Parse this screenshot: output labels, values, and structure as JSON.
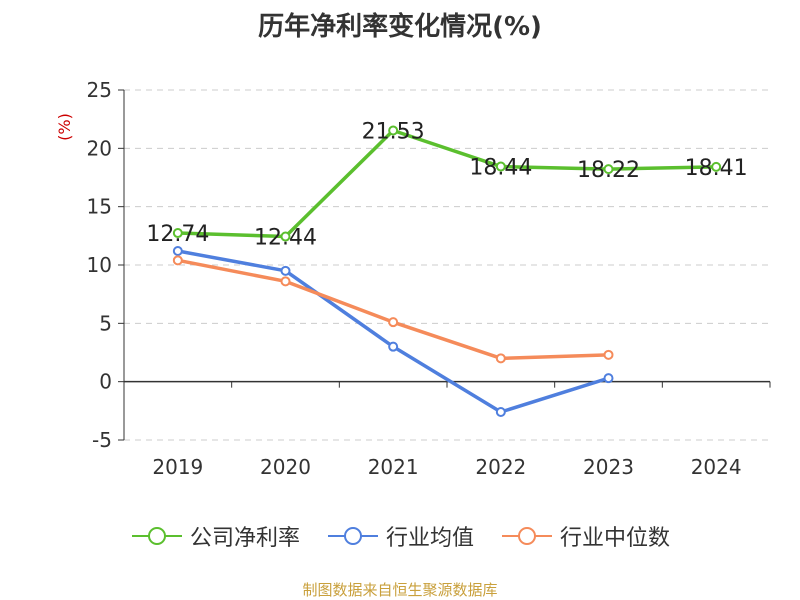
{
  "title": "历年净利率变化情况(%)",
  "source_text": "制图数据来自恒生聚源数据库",
  "colors": {
    "company": "#5bbf2e",
    "industry_avg": "#4f7fde",
    "industry_median": "#f58b5a",
    "grid": "#cccccc",
    "axis": "#333333",
    "unit": "#cc0000",
    "source": "#c9a03c"
  },
  "chart_data": {
    "type": "line",
    "title": "历年净利率变化情况(%)",
    "ylabel": "(%)",
    "xlabel": "",
    "categories": [
      "2019",
      "2020",
      "2021",
      "2022",
      "2023",
      "2024"
    ],
    "ylim": [
      -5,
      25
    ],
    "yticks": [
      -5,
      0,
      5,
      10,
      15,
      20,
      25
    ],
    "grid": true,
    "legend_position": "bottom",
    "series": [
      {
        "name": "公司净利率",
        "values": [
          12.74,
          12.44,
          21.53,
          18.44,
          18.22,
          18.41
        ],
        "labels": [
          "12.74",
          "12.44",
          "21.53",
          "18.44",
          "18.22",
          "18.41"
        ],
        "color": "#5bbf2e"
      },
      {
        "name": "行业均值",
        "values": [
          11.2,
          9.5,
          3.0,
          -2.6,
          0.3,
          null
        ],
        "color": "#4f7fde"
      },
      {
        "name": "行业中位数",
        "values": [
          10.4,
          8.6,
          5.1,
          2.0,
          2.3,
          null
        ],
        "color": "#f58b5a"
      }
    ]
  }
}
